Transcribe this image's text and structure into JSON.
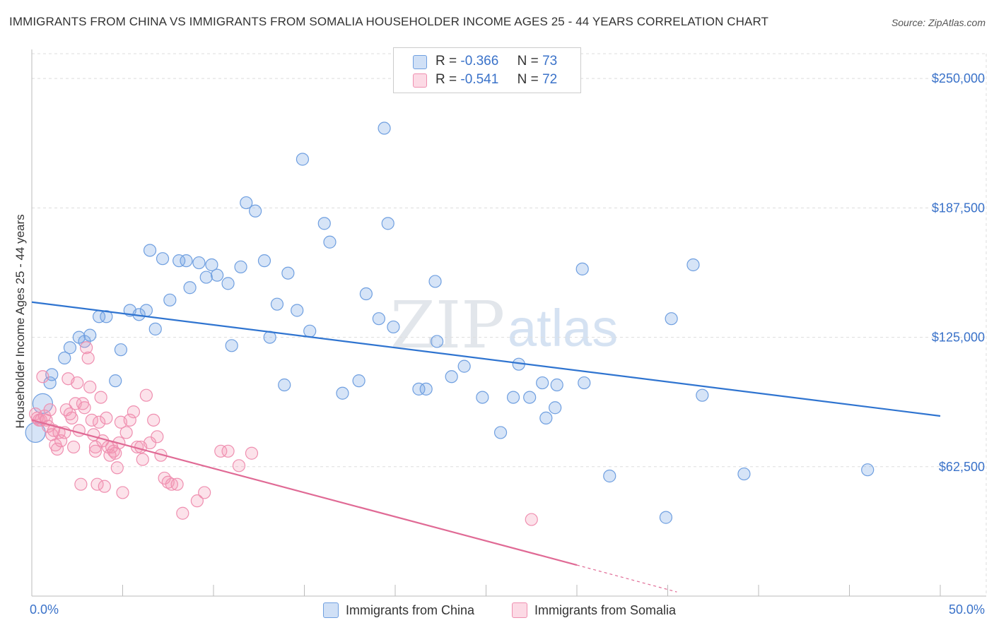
{
  "title": "IMMIGRANTS FROM CHINA VS IMMIGRANTS FROM SOMALIA HOUSEHOLDER INCOME AGES 25 - 44 YEARS CORRELATION CHART",
  "source": "Source: ZipAtlas.com",
  "watermark": {
    "zip": "ZIP",
    "atlas": "atlas"
  },
  "legend_top": [
    {
      "r_label": "R =",
      "r_value": "-0.366",
      "n_label": "N =",
      "n_value": "73"
    },
    {
      "r_label": "R =",
      "r_value": "-0.541",
      "n_label": "N =",
      "n_value": "72"
    }
  ],
  "legend_bottom": [
    "Immigrants from China",
    "Immigrants from Somalia"
  ],
  "colors": {
    "china_fill": "rgba(120,165,230,0.30)",
    "china_stroke": "#6f9fe0",
    "china_line": "#2f74d0",
    "somalia_fill": "rgba(245,150,180,0.28)",
    "somalia_stroke": "#ef8fb0",
    "somalia_line": "#e06a95",
    "tick_label": "#3a72c9",
    "grid": "#dddddd"
  },
  "chart_data": {
    "type": "scatter",
    "title": "IMMIGRANTS FROM CHINA VS IMMIGRANTS FROM SOMALIA HOUSEHOLDER INCOME AGES 25 - 44 YEARS CORRELATION CHART",
    "xlabel": "",
    "ylabel": "Householder Income Ages 25 - 44 years",
    "xlim": [
      0,
      50
    ],
    "ylim": [
      0,
      262000
    ],
    "x_tick_labels": [
      "0.0%",
      "50.0%"
    ],
    "y_ticks": [
      62500,
      125000,
      187500,
      250000
    ],
    "y_tick_labels": [
      "$62,500",
      "$125,000",
      "$187,500",
      "$250,000"
    ],
    "grid": true,
    "legend_position": "top-center",
    "series": [
      {
        "name": "Immigrants from China",
        "r": -0.366,
        "n": 73,
        "trend": {
          "x": [
            0,
            50
          ],
          "y": [
            142000,
            87000
          ]
        },
        "points": [
          [
            0.2,
            79000
          ],
          [
            0.6,
            93000
          ],
          [
            1.0,
            103000
          ],
          [
            1.1,
            107000
          ],
          [
            1.8,
            115000
          ],
          [
            2.1,
            120000
          ],
          [
            2.6,
            125000
          ],
          [
            2.9,
            123000
          ],
          [
            3.2,
            126000
          ],
          [
            3.7,
            135000
          ],
          [
            4.1,
            135000
          ],
          [
            4.6,
            104000
          ],
          [
            4.9,
            119000
          ],
          [
            5.4,
            138000
          ],
          [
            5.9,
            136000
          ],
          [
            6.3,
            138000
          ],
          [
            6.5,
            167000
          ],
          [
            6.8,
            129000
          ],
          [
            7.2,
            163000
          ],
          [
            7.6,
            143000
          ],
          [
            8.1,
            162000
          ],
          [
            8.5,
            162000
          ],
          [
            8.7,
            149000
          ],
          [
            9.2,
            161000
          ],
          [
            9.6,
            154000
          ],
          [
            9.9,
            160000
          ],
          [
            10.2,
            155000
          ],
          [
            10.8,
            151000
          ],
          [
            11.0,
            121000
          ],
          [
            11.5,
            159000
          ],
          [
            11.8,
            190000
          ],
          [
            12.3,
            186000
          ],
          [
            12.8,
            162000
          ],
          [
            13.1,
            125000
          ],
          [
            13.5,
            141000
          ],
          [
            13.9,
            102000
          ],
          [
            14.1,
            156000
          ],
          [
            14.6,
            138000
          ],
          [
            14.9,
            211000
          ],
          [
            15.3,
            128000
          ],
          [
            16.1,
            180000
          ],
          [
            16.4,
            171000
          ],
          [
            17.1,
            98000
          ],
          [
            18.0,
            104000
          ],
          [
            18.4,
            146000
          ],
          [
            19.1,
            134000
          ],
          [
            19.4,
            226000
          ],
          [
            19.6,
            180000
          ],
          [
            19.9,
            130000
          ],
          [
            21.3,
            100000
          ],
          [
            21.7,
            100000
          ],
          [
            22.2,
            152000
          ],
          [
            22.3,
            123000
          ],
          [
            23.1,
            106000
          ],
          [
            23.8,
            111000
          ],
          [
            24.8,
            96000
          ],
          [
            25.8,
            79000
          ],
          [
            26.5,
            96000
          ],
          [
            26.8,
            112000
          ],
          [
            27.4,
            96000
          ],
          [
            28.1,
            103000
          ],
          [
            28.3,
            86000
          ],
          [
            28.8,
            91000
          ],
          [
            28.9,
            102000
          ],
          [
            30.3,
            158000
          ],
          [
            30.4,
            103000
          ],
          [
            31.8,
            58000
          ],
          [
            34.9,
            38000
          ],
          [
            35.2,
            134000
          ],
          [
            36.4,
            160000
          ],
          [
            36.9,
            97000
          ],
          [
            39.2,
            59000
          ],
          [
            46.0,
            61000
          ]
        ]
      },
      {
        "name": "Immigrants from Somalia",
        "r": -0.541,
        "n": 72,
        "trend": {
          "x": [
            0,
            30
          ],
          "y": [
            85000,
            15000
          ]
        },
        "trend_dashed": {
          "x": [
            30,
            35.5
          ],
          "y": [
            15000,
            2000
          ]
        },
        "points": [
          [
            0.2,
            88000
          ],
          [
            0.3,
            86000
          ],
          [
            0.4,
            85000
          ],
          [
            0.5,
            85000
          ],
          [
            0.6,
            106000
          ],
          [
            0.7,
            87000
          ],
          [
            0.8,
            85000
          ],
          [
            0.9,
            82000
          ],
          [
            1.0,
            90000
          ],
          [
            1.1,
            78000
          ],
          [
            1.2,
            80000
          ],
          [
            1.3,
            73000
          ],
          [
            1.4,
            71000
          ],
          [
            1.5,
            79000
          ],
          [
            1.6,
            75000
          ],
          [
            1.8,
            79000
          ],
          [
            1.9,
            90000
          ],
          [
            2.0,
            105000
          ],
          [
            2.1,
            88000
          ],
          [
            2.2,
            86000
          ],
          [
            2.3,
            72000
          ],
          [
            2.4,
            93000
          ],
          [
            2.5,
            103000
          ],
          [
            2.6,
            80000
          ],
          [
            2.7,
            54000
          ],
          [
            2.8,
            93000
          ],
          [
            2.9,
            91000
          ],
          [
            3.0,
            120000
          ],
          [
            3.1,
            115000
          ],
          [
            3.2,
            101000
          ],
          [
            3.3,
            85000
          ],
          [
            3.4,
            78000
          ],
          [
            3.5,
            72000
          ],
          [
            3.6,
            54000
          ],
          [
            3.7,
            84000
          ],
          [
            3.8,
            96000
          ],
          [
            3.9,
            75000
          ],
          [
            4.0,
            53000
          ],
          [
            4.1,
            86000
          ],
          [
            4.2,
            72000
          ],
          [
            4.3,
            68000
          ],
          [
            4.4,
            72000
          ],
          [
            4.5,
            70000
          ],
          [
            4.6,
            69000
          ],
          [
            4.7,
            62000
          ],
          [
            4.8,
            74000
          ],
          [
            4.9,
            84000
          ],
          [
            5.0,
            50000
          ],
          [
            5.2,
            79000
          ],
          [
            5.4,
            85000
          ],
          [
            5.6,
            89000
          ],
          [
            5.8,
            72000
          ],
          [
            6.1,
            66000
          ],
          [
            6.3,
            97000
          ],
          [
            6.5,
            74000
          ],
          [
            6.7,
            85000
          ],
          [
            6.9,
            77000
          ],
          [
            7.1,
            68000
          ],
          [
            7.3,
            57000
          ],
          [
            7.5,
            55000
          ],
          [
            7.7,
            54000
          ],
          [
            8.0,
            54000
          ],
          [
            8.3,
            40000
          ],
          [
            9.1,
            46000
          ],
          [
            9.5,
            50000
          ],
          [
            10.4,
            70000
          ],
          [
            10.8,
            70000
          ],
          [
            11.4,
            63000
          ],
          [
            12.1,
            69000
          ],
          [
            6.0,
            72000
          ],
          [
            3.5,
            70000
          ],
          [
            27.5,
            37000
          ]
        ]
      }
    ]
  }
}
